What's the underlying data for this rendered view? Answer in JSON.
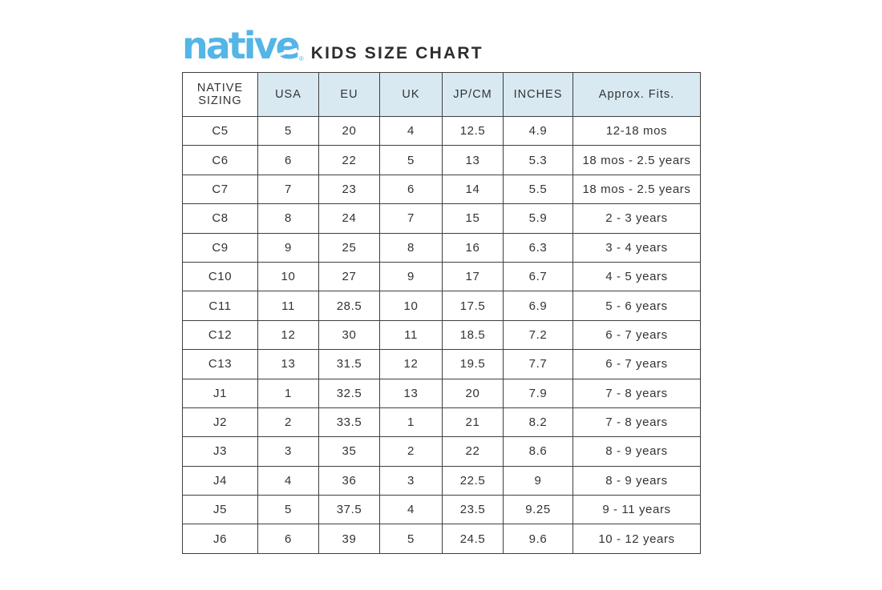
{
  "header": {
    "logo_text": "native",
    "logo_mark": "®",
    "title": "KIDS SIZE CHART"
  },
  "colors": {
    "logo_blue": "#54b5e6",
    "header_cell_bg": "#d8e9f2",
    "grid_border": "#3f3f3f",
    "text": "#333333",
    "background": "#ffffff"
  },
  "chart_data": {
    "type": "table",
    "title": "native KIDS SIZE CHART",
    "columns": [
      "NATIVE SIZING",
      "USA",
      "EU",
      "UK",
      "JP/CM",
      "INCHES",
      "Approx. Fits."
    ],
    "rows": [
      [
        "C5",
        "5",
        "20",
        "4",
        "12.5",
        "4.9",
        "12-18 mos"
      ],
      [
        "C6",
        "6",
        "22",
        "5",
        "13",
        "5.3",
        "18 mos - 2.5 years"
      ],
      [
        "C7",
        "7",
        "23",
        "6",
        "14",
        "5.5",
        "18 mos - 2.5 years"
      ],
      [
        "C8",
        "8",
        "24",
        "7",
        "15",
        "5.9",
        "2 - 3 years"
      ],
      [
        "C9",
        "9",
        "25",
        "8",
        "16",
        "6.3",
        "3 - 4 years"
      ],
      [
        "C10",
        "10",
        "27",
        "9",
        "17",
        "6.7",
        "4 - 5 years"
      ],
      [
        "C11",
        "11",
        "28.5",
        "10",
        "17.5",
        "6.9",
        "5 - 6 years"
      ],
      [
        "C12",
        "12",
        "30",
        "11",
        "18.5",
        "7.2",
        "6 - 7 years"
      ],
      [
        "C13",
        "13",
        "31.5",
        "12",
        "19.5",
        "7.7",
        "6 - 7 years"
      ],
      [
        "J1",
        "1",
        "32.5",
        "13",
        "20",
        "7.9",
        "7 - 8 years"
      ],
      [
        "J2",
        "2",
        "33.5",
        "1",
        "21",
        "8.2",
        "7 - 8 years"
      ],
      [
        "J3",
        "3",
        "35",
        "2",
        "22",
        "8.6",
        "8 - 9 years"
      ],
      [
        "J4",
        "4",
        "36",
        "3",
        "22.5",
        "9",
        "8 - 9 years"
      ],
      [
        "J5",
        "5",
        "37.5",
        "4",
        "23.5",
        "9.25",
        "9 - 11 years"
      ],
      [
        "J6",
        "6",
        "39",
        "5",
        "24.5",
        "9.6",
        "10 - 12 years"
      ]
    ]
  }
}
